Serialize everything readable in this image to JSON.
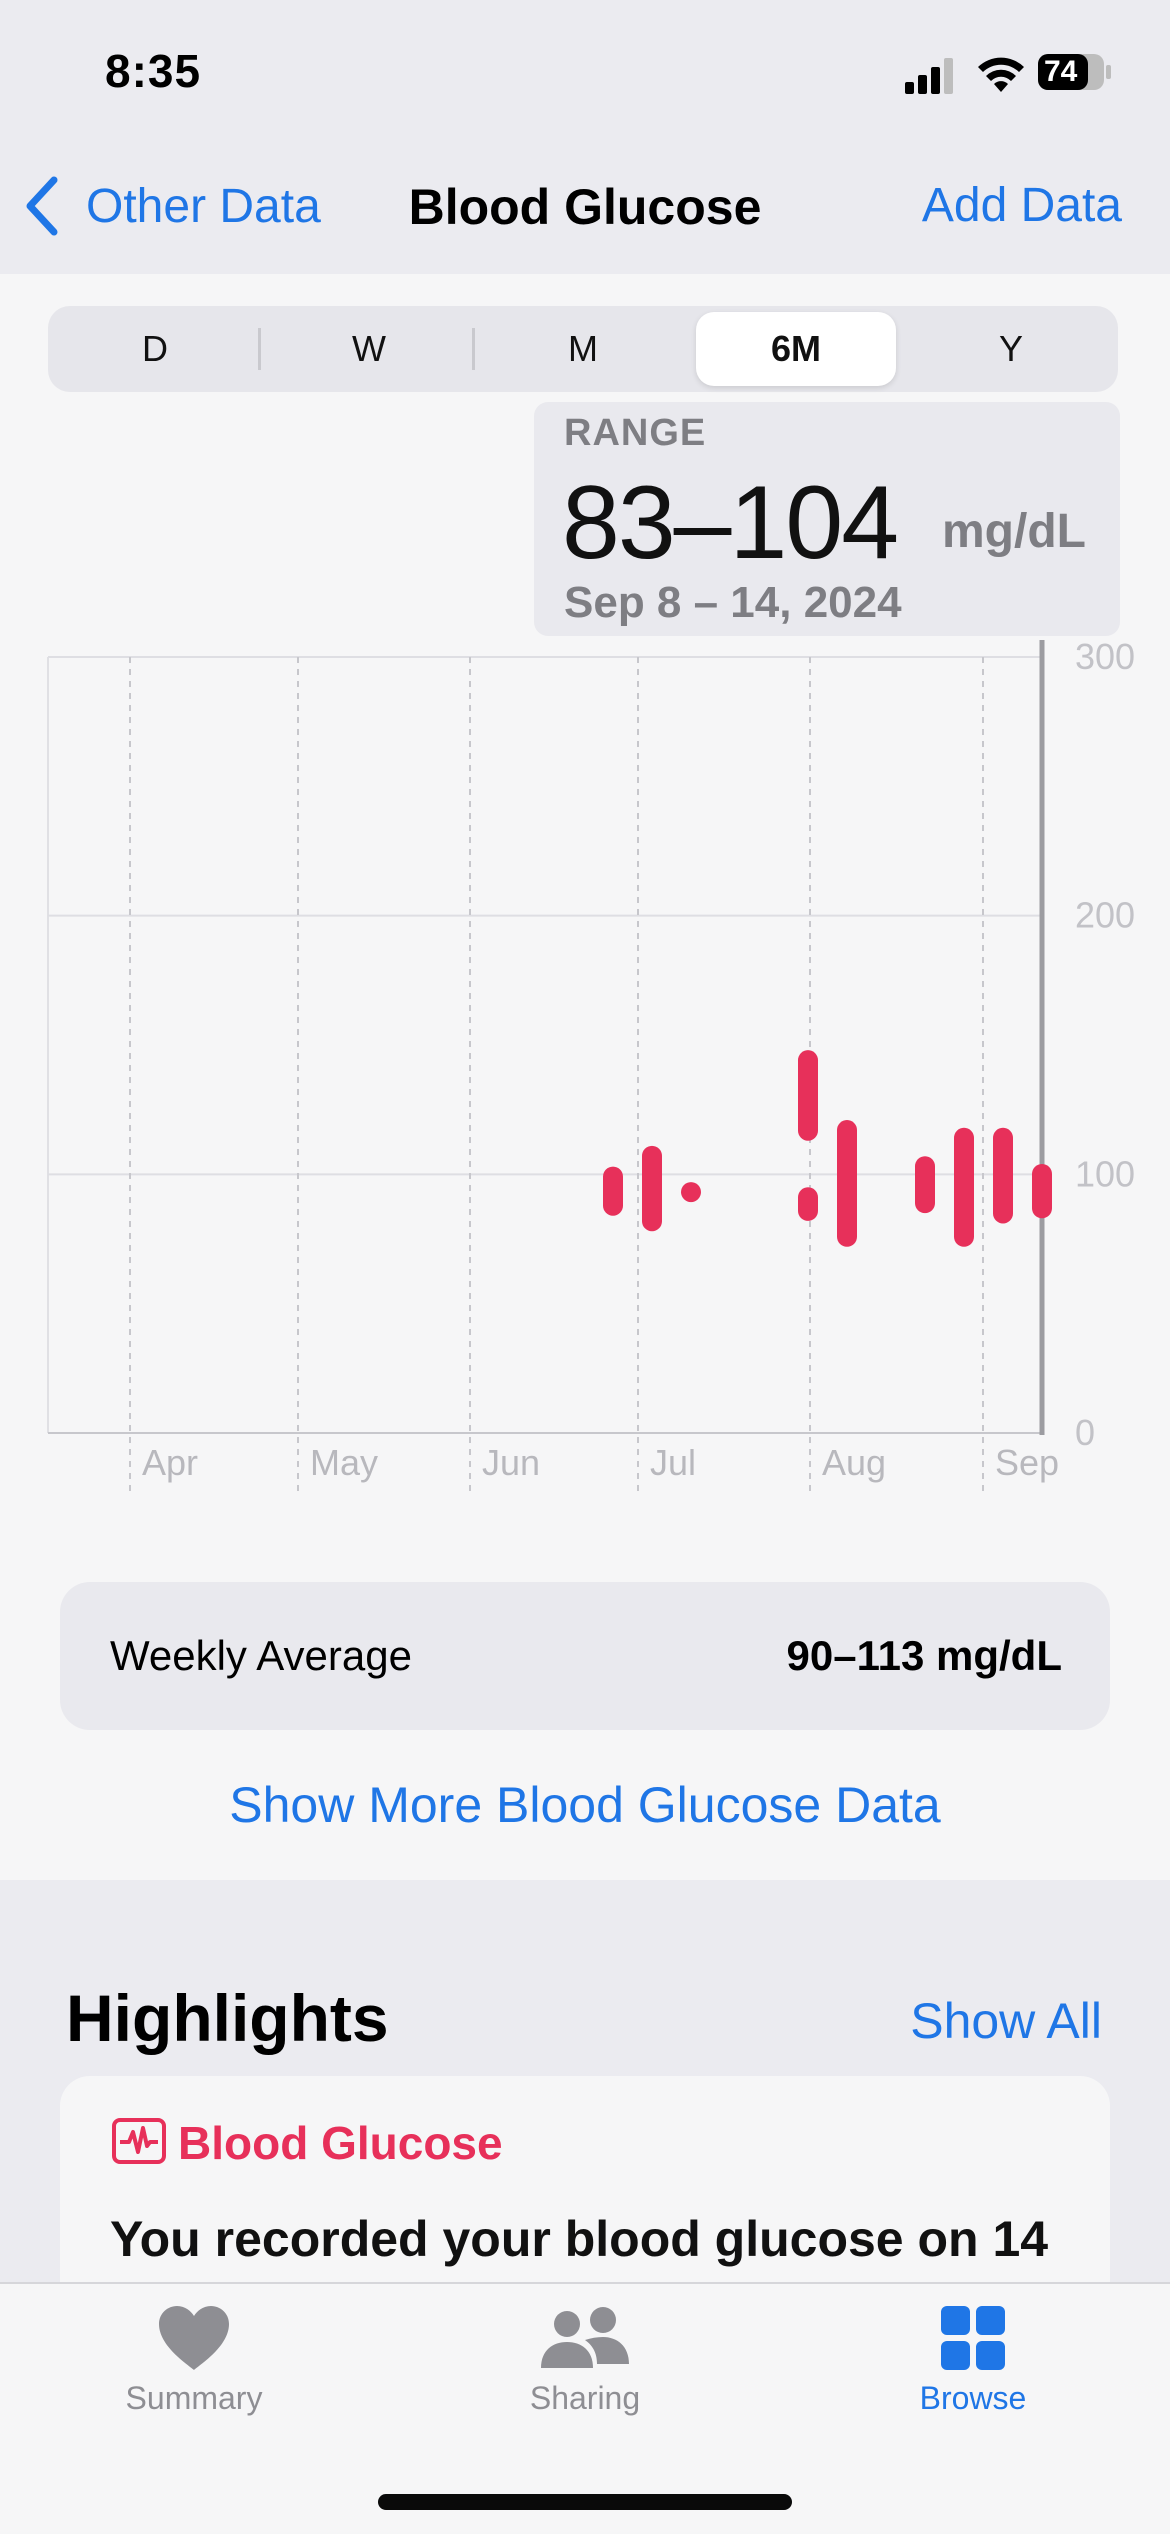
{
  "status_bar": {
    "time": "8:35",
    "battery": "74"
  },
  "nav": {
    "back_label": "Other Data",
    "title": "Blood Glucose",
    "add_label": "Add Data"
  },
  "segmented": {
    "options": [
      "D",
      "W",
      "M",
      "6M",
      "Y"
    ],
    "selected": "6M"
  },
  "range": {
    "label": "RANGE",
    "value": "83–104",
    "unit": "mg/dL",
    "dates": "Sep 8 – 14, 2024"
  },
  "chart_data": {
    "type": "range-bar",
    "x_labels": [
      "Apr",
      "May",
      "Jun",
      "Jul",
      "Aug",
      "Sep"
    ],
    "y_ticks": [
      "0",
      "100",
      "200",
      "300"
    ],
    "ylim": [
      0,
      300
    ],
    "color": "#e7305a",
    "weeks": [
      {
        "week": "Jun 30",
        "min": 84,
        "max": 103
      },
      {
        "week": "Jul 7",
        "min": 78,
        "max": 111
      },
      {
        "week": "Jul 14",
        "min": 90,
        "max": 97
      },
      {
        "week": "Jul 28",
        "min": 82,
        "max": 95
      },
      {
        "week": "Jul 28b",
        "min": 113,
        "max": 148
      },
      {
        "week": "Aug 4",
        "min": 72,
        "max": 121
      },
      {
        "week": "Aug 18",
        "min": 85,
        "max": 107
      },
      {
        "week": "Aug 25",
        "min": 72,
        "max": 118
      },
      {
        "week": "Sep 1",
        "min": 81,
        "max": 118
      },
      {
        "week": "Sep 8",
        "min": 83,
        "max": 104
      }
    ]
  },
  "weekly_average": {
    "label": "Weekly Average",
    "value": "90–113 mg/dL"
  },
  "show_more": "Show More Blood Glucose Data",
  "highlights": {
    "title": "Highlights",
    "show_all": "Show All",
    "card_category": "Blood Glucose",
    "card_text": "You recorded your blood glucose on 14"
  },
  "tabs": [
    {
      "label": "Summary",
      "icon": "heart-icon"
    },
    {
      "label": "Sharing",
      "icon": "people-icon"
    },
    {
      "label": "Browse",
      "icon": "grid-icon"
    }
  ],
  "colors": {
    "accent": "#1f76e6",
    "glucose": "#e7305a"
  }
}
